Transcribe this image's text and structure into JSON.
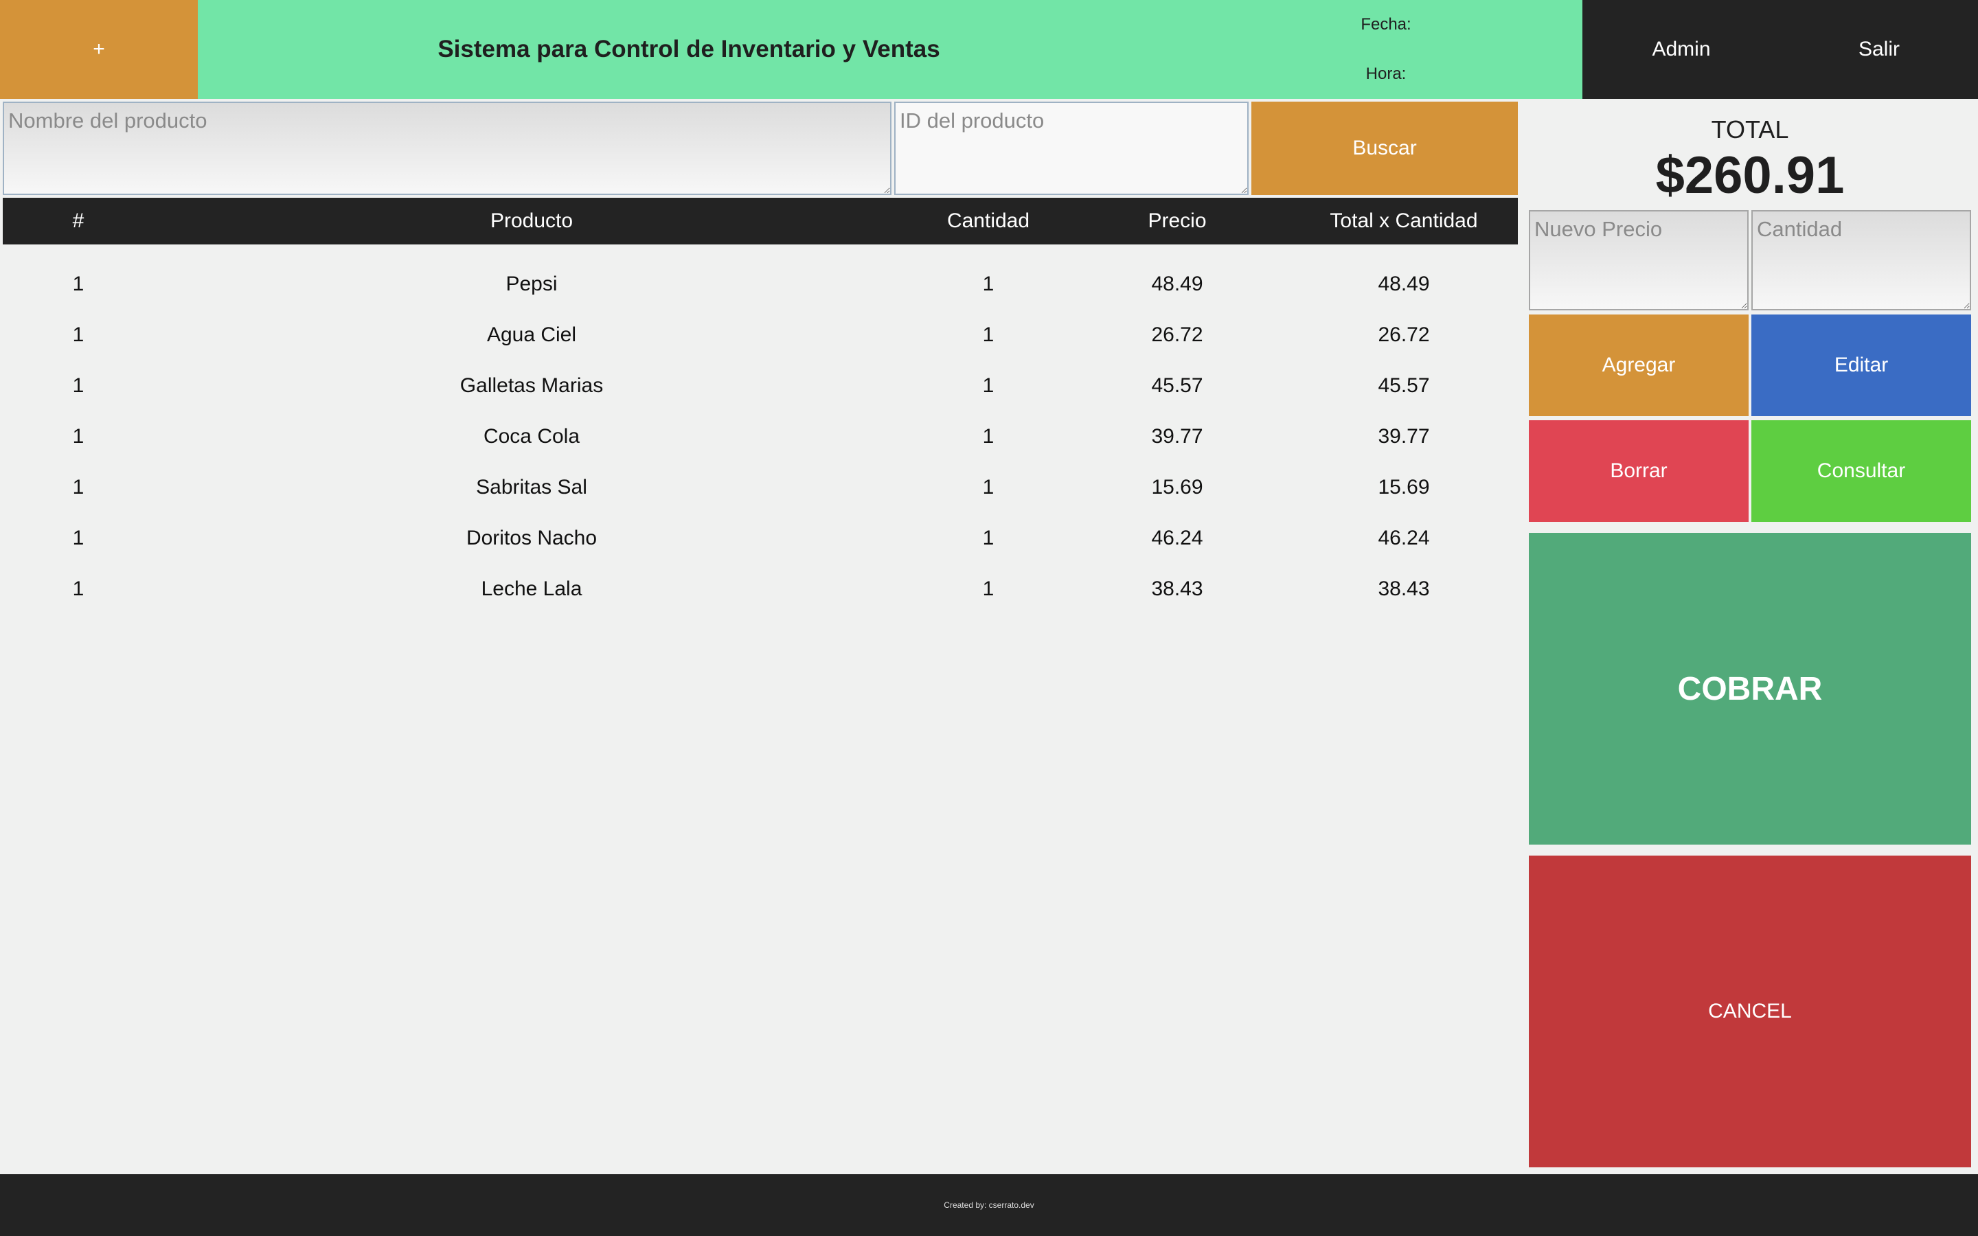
{
  "header": {
    "add_label": "+",
    "title": "Sistema para Control de Inventario y Ventas",
    "date_label": "Fecha:",
    "time_label": "Hora:",
    "admin_label": "Admin",
    "exit_label": "Salir"
  },
  "search": {
    "name_placeholder": "Nombre del producto",
    "name_value": "",
    "id_placeholder": "ID del producto",
    "id_value": "",
    "button_label": "Buscar"
  },
  "table": {
    "headers": [
      "#",
      "Producto",
      "Cantidad",
      "Precio",
      "Total x Cantidad"
    ],
    "rows": [
      {
        "num": "1",
        "product": "Pepsi",
        "qty": "1",
        "price": "48.49",
        "total": "48.49"
      },
      {
        "num": "1",
        "product": "Agua Ciel",
        "qty": "1",
        "price": "26.72",
        "total": "26.72"
      },
      {
        "num": "1",
        "product": "Galletas Marias",
        "qty": "1",
        "price": "45.57",
        "total": "45.57"
      },
      {
        "num": "1",
        "product": "Coca Cola",
        "qty": "1",
        "price": "39.77",
        "total": "39.77"
      },
      {
        "num": "1",
        "product": "Sabritas Sal",
        "qty": "1",
        "price": "15.69",
        "total": "15.69"
      },
      {
        "num": "1",
        "product": "Doritos Nacho",
        "qty": "1",
        "price": "46.24",
        "total": "46.24"
      },
      {
        "num": "1",
        "product": "Leche Lala",
        "qty": "1",
        "price": "38.43",
        "total": "38.43"
      }
    ]
  },
  "summary": {
    "total_label": "TOTAL",
    "total_value": "$260.91"
  },
  "editor": {
    "price_placeholder": "Nuevo Precio",
    "price_value": "",
    "qty_placeholder": "Cantidad",
    "qty_value": "",
    "add_label": "Agregar",
    "edit_label": "Editar",
    "delete_label": "Borrar",
    "query_label": "Consultar"
  },
  "actions": {
    "charge_label": "COBRAR",
    "cancel_label": "CANCEL"
  },
  "footer": {
    "credit": "Created by: cserrato.dev"
  },
  "colors": {
    "accent_orange": "#d49339",
    "header_green": "#72e5a7",
    "dark": "#232323",
    "edit_blue": "#3a6cc4",
    "delete_red": "#e04553",
    "query_green": "#5ece41",
    "charge_green": "#52aa7a",
    "cancel_red": "#c1393b"
  }
}
